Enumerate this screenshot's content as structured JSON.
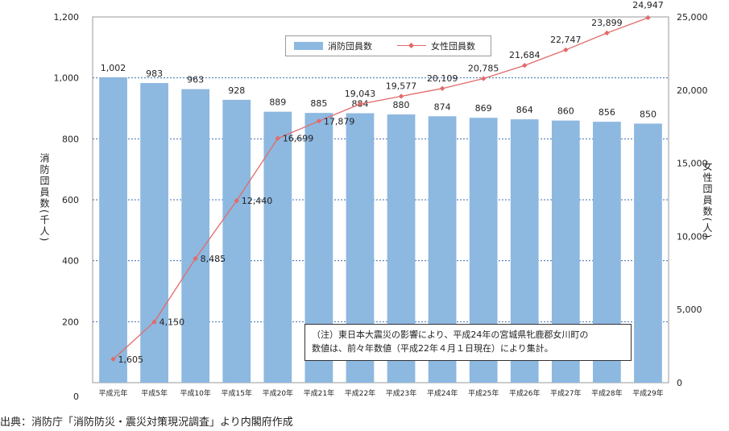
{
  "chart_data": {
    "type": "bar",
    "categories": [
      "平成元年",
      "平成5年",
      "平成10年",
      "平成15年",
      "平成20年",
      "平成21年",
      "平成22年",
      "平成23年",
      "平成24年",
      "平成25年",
      "平成26年",
      "平成27年",
      "平成28年",
      "平成29年"
    ],
    "series": [
      {
        "name": "消防団員数",
        "type": "bar",
        "axis": "left",
        "values": [
          1002,
          983,
          963,
          928,
          889,
          885,
          884,
          880,
          874,
          869,
          864,
          860,
          856,
          850
        ],
        "labels": [
          "1,002",
          "983",
          "963",
          "928",
          "889",
          "885",
          "884",
          "880",
          "874",
          "869",
          "864",
          "860",
          "856",
          "850"
        ]
      },
      {
        "name": "女性団員数",
        "type": "line",
        "axis": "right",
        "values": [
          1605,
          4150,
          8485,
          12440,
          16699,
          17879,
          19043,
          19577,
          20109,
          20785,
          21684,
          22747,
          23899,
          24947
        ],
        "labels": [
          "1,605",
          "4,150",
          "8,485",
          "12,440",
          "16,699",
          "17,879",
          "19,043",
          "19,577",
          "20,109",
          "20,785",
          "21,684",
          "22,747",
          "23,899",
          "24,947"
        ]
      }
    ],
    "y_left": {
      "label": "消防団員数(千人)",
      "ylim": [
        0,
        1200
      ],
      "ticks": [
        0,
        200,
        400,
        600,
        800,
        1000,
        1200
      ],
      "tick_labels": [
        "0",
        "200",
        "400",
        "600",
        "800",
        "1,000",
        "1,200"
      ]
    },
    "y_right": {
      "label": "女性団員数(人)",
      "ylim": [
        0,
        25000
      ],
      "ticks": [
        0,
        5000,
        10000,
        15000,
        20000,
        25000
      ],
      "tick_labels": [
        "0",
        "5,000",
        "10,000",
        "15,000",
        "20,000",
        "25,000"
      ]
    },
    "grid": true,
    "legend": "top-center",
    "colors": {
      "bar": "#8db8e0",
      "line": "#e26a6a",
      "grid": "#3a6fb0"
    }
  },
  "note": {
    "line1": "（注）東日本大震災の影響により、平成24年の宮城県牝鹿郡女川町の",
    "line2": "数値は、前々年数値（平成22年４月１日現在）により集計。"
  },
  "caption": "出典：消防庁「消防防災・震災対策現況調査」より内閣府作成"
}
